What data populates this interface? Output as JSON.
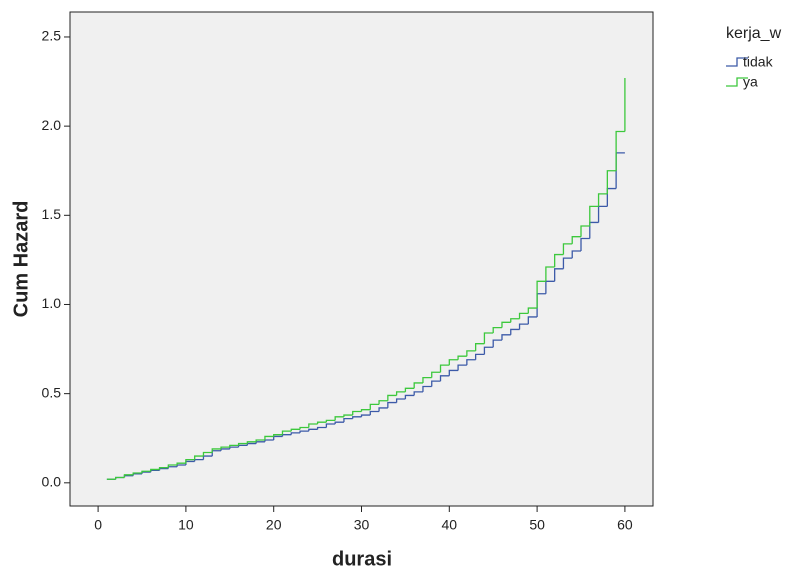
{
  "chart_data": {
    "type": "step",
    "xlabel": "durasi",
    "ylabel": "Cum Hazard",
    "legend_title": "kerja_w",
    "legend": "right",
    "x": [
      1,
      2,
      3,
      4,
      5,
      6,
      7,
      8,
      9,
      10,
      11,
      12,
      13,
      14,
      15,
      16,
      17,
      18,
      19,
      20,
      21,
      22,
      23,
      24,
      25,
      26,
      27,
      28,
      29,
      30,
      31,
      32,
      33,
      34,
      35,
      36,
      37,
      38,
      39,
      40,
      41,
      42,
      43,
      44,
      45,
      46,
      47,
      48,
      49,
      50,
      51,
      52,
      53,
      54,
      55,
      56,
      57,
      58,
      59,
      60
    ],
    "series": [
      {
        "name": "tidak",
        "color": "#3c5aa8",
        "values": [
          0.02,
          0.03,
          0.04,
          0.05,
          0.06,
          0.07,
          0.08,
          0.09,
          0.1,
          0.12,
          0.13,
          0.15,
          0.18,
          0.19,
          0.2,
          0.21,
          0.22,
          0.23,
          0.24,
          0.26,
          0.27,
          0.28,
          0.29,
          0.3,
          0.31,
          0.33,
          0.34,
          0.36,
          0.37,
          0.38,
          0.4,
          0.42,
          0.45,
          0.47,
          0.49,
          0.51,
          0.54,
          0.57,
          0.6,
          0.63,
          0.66,
          0.69,
          0.72,
          0.76,
          0.8,
          0.83,
          0.86,
          0.89,
          0.93,
          1.06,
          1.13,
          1.2,
          1.26,
          1.3,
          1.37,
          1.46,
          1.55,
          1.65,
          1.85,
          1.85
        ]
      },
      {
        "name": "ya",
        "color": "#3cc83c",
        "values": [
          0.02,
          0.03,
          0.045,
          0.055,
          0.065,
          0.075,
          0.085,
          0.1,
          0.11,
          0.13,
          0.15,
          0.17,
          0.19,
          0.2,
          0.21,
          0.22,
          0.23,
          0.24,
          0.26,
          0.27,
          0.29,
          0.3,
          0.31,
          0.33,
          0.34,
          0.35,
          0.37,
          0.38,
          0.4,
          0.41,
          0.44,
          0.46,
          0.49,
          0.51,
          0.53,
          0.56,
          0.59,
          0.62,
          0.66,
          0.69,
          0.71,
          0.74,
          0.78,
          0.84,
          0.87,
          0.9,
          0.92,
          0.95,
          0.98,
          1.13,
          1.21,
          1.28,
          1.34,
          1.38,
          1.44,
          1.55,
          1.62,
          1.75,
          1.97,
          2.27
        ]
      }
    ],
    "xlim": [
      -3.2,
      63.2
    ],
    "xticks": [
      0,
      10,
      20,
      30,
      40,
      50,
      60
    ],
    "ylim": [
      -0.13,
      2.64
    ],
    "yticks": [
      {
        "value": 0,
        "label": "0.0"
      },
      {
        "value": 0.5,
        "label": "0.5"
      },
      {
        "value": 1,
        "label": "1.0"
      },
      {
        "value": 1.5,
        "label": "1.5"
      },
      {
        "value": 2,
        "label": "2.0"
      },
      {
        "value": 2.5,
        "label": "2.5"
      }
    ]
  }
}
